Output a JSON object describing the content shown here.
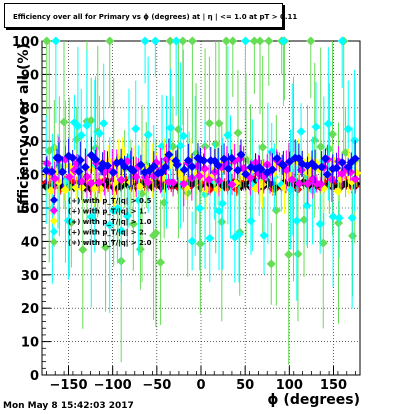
{
  "title": "Efficiency over all for Primary vs ϕ (degrees) at | η | <= 1.0 at pT > 0.11",
  "timestamp": "Mon May  8 15:42:03 2017",
  "chart_data": {
    "type": "scatter",
    "xlabel": "ϕ (degrees)",
    "ylabel": "Efficiency over all (%)",
    "xlim": [
      -180,
      180
    ],
    "ylim": [
      0,
      100
    ],
    "x_ticks": [
      -150,
      -100,
      -50,
      0,
      50,
      100,
      150
    ],
    "x_tick_labels": [
      "−150",
      "−100",
      "−50",
      "0",
      "50",
      "100",
      "150"
    ],
    "y_ticks": [
      0,
      10,
      20,
      30,
      40,
      50,
      60,
      70,
      80,
      90,
      100
    ],
    "grid": true,
    "legend_placement": "left-middle",
    "series": [
      {
        "name": "(+) with p_T/|q| > 0.5",
        "color": "#0000ff",
        "marker": "diamond",
        "center": 63,
        "spread": 3,
        "err": 4
      },
      {
        "name": "(+) with p_T/|q| > 1.",
        "color": "#ff00ff",
        "marker": "diamond",
        "center": 61,
        "spread": 4,
        "err": 5
      },
      {
        "name": "(+) with p_T/|q| > 1.0",
        "color": "#ffff00",
        "marker": "diamond",
        "center": 60,
        "spread": 5,
        "err": 6
      },
      {
        "name": "(+) with p_T/|q| > 2.",
        "color": "#00ffff",
        "marker": "diamond",
        "center": 58,
        "spread": 18,
        "err": 20
      },
      {
        "name": "(+) with p_T/|q| > 2.0",
        "color": "#66dd55",
        "marker": "diamond",
        "center": 55,
        "spread": 22,
        "err": 24
      }
    ],
    "extra_series": [
      {
        "color": "#ff0000",
        "center": 57,
        "spread": 1.5,
        "err": 2
      },
      {
        "color": "#000000",
        "center": 57,
        "spread": 1,
        "err": 1.5
      }
    ]
  }
}
